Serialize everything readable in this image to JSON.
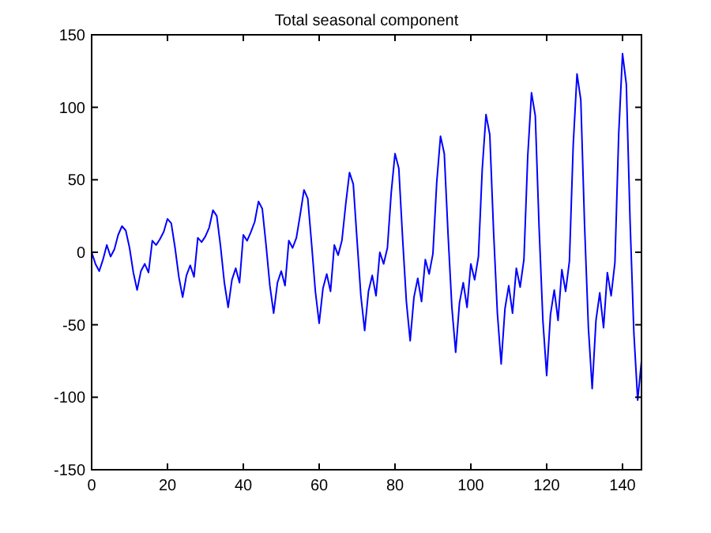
{
  "chart_data": {
    "type": "line",
    "title": "Total seasonal component",
    "x": [
      0,
      1,
      2,
      3,
      4,
      5,
      6,
      7,
      8,
      9,
      10,
      11,
      12,
      13,
      14,
      15,
      16,
      17,
      18,
      19,
      20,
      21,
      22,
      23,
      24,
      25,
      26,
      27,
      28,
      29,
      30,
      31,
      32,
      33,
      34,
      35,
      36,
      37,
      38,
      39,
      40,
      41,
      42,
      43,
      44,
      45,
      46,
      47,
      48,
      49,
      50,
      51,
      52,
      53,
      54,
      55,
      56,
      57,
      58,
      59,
      60,
      61,
      62,
      63,
      64,
      65,
      66,
      67,
      68,
      69,
      70,
      71,
      72,
      73,
      74,
      75,
      76,
      77,
      78,
      79,
      80,
      81,
      82,
      83,
      84,
      85,
      86,
      87,
      88,
      89,
      90,
      91,
      92,
      93,
      94,
      95,
      96,
      97,
      98,
      99,
      100,
      101,
      102,
      103,
      104,
      105,
      106,
      107,
      108,
      109,
      110,
      111,
      112,
      113,
      114,
      115,
      116,
      117,
      118,
      119,
      120,
      121,
      122,
      123,
      124,
      125,
      126,
      127,
      128,
      129,
      130,
      131,
      132,
      133,
      134,
      135,
      136,
      137,
      138,
      139,
      140,
      141,
      142,
      143,
      144,
      145
    ],
    "series": [
      {
        "color": "#0000ff",
        "values": [
          0,
          -8,
          -13,
          -5,
          5,
          -3,
          2,
          12,
          18,
          15,
          3,
          -14,
          -26,
          -13,
          -8,
          -14,
          8,
          5,
          9,
          14,
          23,
          20,
          3,
          -17,
          -31,
          -16,
          -9,
          -17,
          10,
          7,
          11,
          17,
          29,
          25,
          4,
          -21,
          -38,
          -19,
          -11,
          -21,
          12,
          8,
          14,
          21,
          35,
          30,
          5,
          -23,
          -42,
          -21,
          -13,
          -23,
          8,
          3,
          10,
          26,
          43,
          37,
          6,
          -27,
          -49,
          -25,
          -15,
          -27,
          5,
          -2,
          8,
          33,
          55,
          47,
          8,
          -30,
          -54,
          -27,
          -16,
          -30,
          0,
          -8,
          3,
          41,
          68,
          58,
          10,
          -34,
          -61,
          -31,
          -18,
          -34,
          -5,
          -15,
          -1,
          48,
          80,
          68,
          12,
          -38,
          -69,
          -35,
          -21,
          -38,
          -8,
          -19,
          -3,
          57,
          95,
          81,
          14,
          -42,
          -77,
          -39,
          -23,
          -42,
          -11,
          -24,
          -5,
          66,
          110,
          94,
          17,
          -47,
          -85,
          -43,
          -26,
          -47,
          -12,
          -27,
          -6,
          74,
          123,
          105,
          18,
          -52,
          -94,
          -47,
          -28,
          -52,
          -14,
          -30,
          -7,
          82,
          137,
          116,
          21,
          -56,
          -102,
          -75
        ]
      }
    ],
    "xlim": [
      0,
      145
    ],
    "xticks": [
      0,
      20,
      40,
      60,
      80,
      100,
      120,
      140
    ],
    "ylim": [
      -150,
      150
    ],
    "yticks": [
      -150,
      -100,
      -50,
      0,
      50,
      100,
      150
    ],
    "grid": false,
    "marker": "none",
    "line_style": "solid"
  }
}
